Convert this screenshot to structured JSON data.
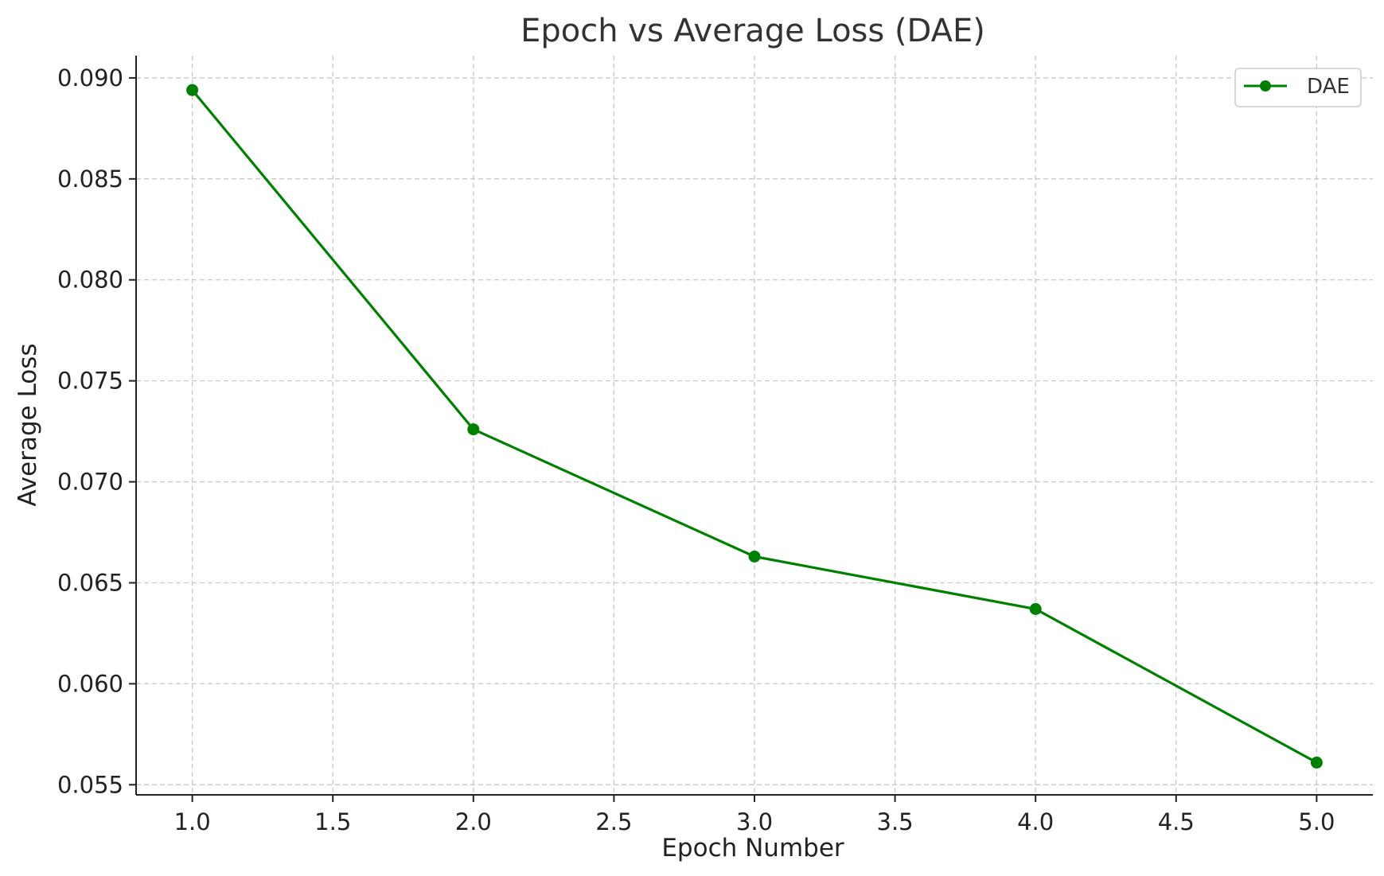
{
  "chart_data": {
    "type": "line",
    "title": "Epoch vs Average Loss (DAE)",
    "xlabel": "Epoch Number",
    "ylabel": "Average Loss",
    "xlim": [
      0.8,
      5.2
    ],
    "ylim": [
      0.0545,
      0.0911
    ],
    "xticks": [
      1.0,
      1.5,
      2.0,
      2.5,
      3.0,
      3.5,
      4.0,
      4.5,
      5.0
    ],
    "yticks": [
      0.055,
      0.06,
      0.065,
      0.07,
      0.075,
      0.08,
      0.085,
      0.09
    ],
    "grid": true,
    "legend_position": "top-right",
    "series": [
      {
        "name": "DAE",
        "color": "#008000",
        "marker": "circle",
        "x": [
          1,
          2,
          3,
          4,
          5
        ],
        "y": [
          0.0894,
          0.0726,
          0.0663,
          0.0637,
          0.0561
        ]
      }
    ]
  }
}
